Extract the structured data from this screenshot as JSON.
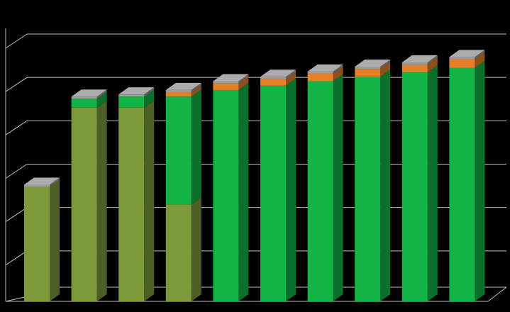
{
  "chart_data": {
    "type": "bar",
    "stacked": true,
    "three_d": true,
    "categories": [
      "",
      "",
      "",
      "",
      "",
      "",
      "",
      "",
      "",
      ""
    ],
    "series": [
      {
        "color": "#7c9a3a",
        "values": [
          2.6,
          4.4,
          4.4,
          2.2,
          0,
          0,
          0,
          0,
          0,
          0
        ]
      },
      {
        "color": "#11b445",
        "values": [
          0,
          0.2,
          0.25,
          2.45,
          4.8,
          4.9,
          5.0,
          5.1,
          5.2,
          5.3
        ]
      },
      {
        "color": "#e57f28",
        "values": [
          0,
          0,
          0,
          0.1,
          0.15,
          0.15,
          0.17,
          0.18,
          0.18,
          0.2
        ]
      },
      {
        "color": "#9c9c9c",
        "values": [
          0.05,
          0.05,
          0.05,
          0.05,
          0.05,
          0.05,
          0.05,
          0.05,
          0.05,
          0.05
        ]
      }
    ],
    "ylim": [
      0,
      6.2
    ],
    "grid": true,
    "legend": "none",
    "title": "",
    "xlabel": "",
    "ylabel": ""
  }
}
